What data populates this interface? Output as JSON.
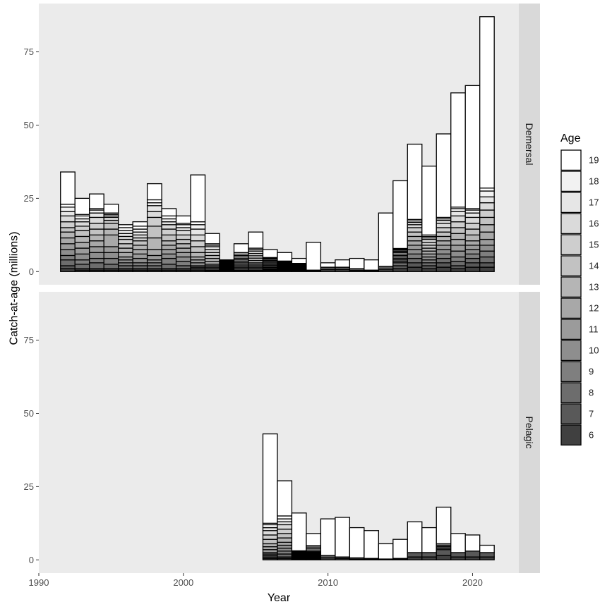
{
  "chart_data": {
    "type": "bar",
    "stacked": true,
    "xlabel": "Year",
    "ylabel": "Catch-at-age (millions)",
    "x_ticks": [
      1990,
      2000,
      2010,
      2020
    ],
    "y_ticks": [
      0,
      25,
      50,
      75
    ],
    "xlim": [
      1990,
      2023.2
    ],
    "ylim": [
      -4.5,
      91.5
    ],
    "grid": false,
    "legend": {
      "title": "Age",
      "position": "right",
      "entries": [
        "19",
        "18",
        "17",
        "16",
        "15",
        "14",
        "13",
        "12",
        "11",
        "10",
        "9",
        "8",
        "7",
        "6"
      ],
      "colors": [
        "#ffffff",
        "#f2f2f2",
        "#e6e6e6",
        "#dadada",
        "#cecece",
        "#c2c2c2",
        "#b5b5b5",
        "#a8a8a8",
        "#9b9b9b",
        "#8e8e8e",
        "#7f7f7f",
        "#6d6d6d",
        "#595959",
        "#404040"
      ]
    },
    "facets": [
      {
        "name": "Demersal",
        "bars": [
          {
            "x": 1992,
            "total": 34,
            "layers": [
              1,
              1.5,
              1.5,
              2,
              2,
              1.5,
              2,
              2,
              2,
              2,
              1.5,
              2,
              1,
              1
            ]
          },
          {
            "x": 1993,
            "total": 25,
            "layers": [
              0.5,
              1,
              1,
              1.5,
              1.5,
              2,
              2,
              2,
              2,
              2,
              1.5,
              1.5,
              0.5,
              0.5
            ]
          },
          {
            "x": 1994,
            "total": 26.5,
            "layers": [
              0.5,
              1,
              1.5,
              2,
              2,
              2,
              2,
              2,
              2,
              2,
              1.5,
              2,
              0.5,
              0.5
            ]
          },
          {
            "x": 1995,
            "total": 23,
            "layers": [
              0.5,
              0.5,
              0.5,
              1,
              1,
              2,
              2,
              4,
              2,
              2,
              2,
              1.5,
              0.5,
              0.5
            ]
          },
          {
            "x": 1996,
            "total": 16,
            "layers": [
              1,
              1,
              1,
              1,
              1.5,
              1.5,
              1.5,
              1.5,
              1,
              1,
              1,
              1,
              0.5,
              0.5
            ]
          },
          {
            "x": 1997,
            "total": 17,
            "layers": [
              1,
              1,
              1,
              1,
              1,
              1.5,
              1.5,
              1.5,
              1.5,
              1.5,
              1,
              1,
              0.5,
              0.5
            ]
          },
          {
            "x": 1998,
            "total": 30,
            "layers": [
              1,
              1,
              2,
              2,
              3,
              4,
              4,
              2,
              1.5,
              1,
              1,
              1,
              0.5,
              0.5
            ]
          },
          {
            "x": 1999,
            "total": 21.5,
            "layers": [
              1,
              1,
              1,
              1.5,
              2,
              2,
              1.5,
              1.5,
              1.5,
              1.5,
              2,
              1.5,
              0.5,
              0.5
            ]
          },
          {
            "x": 2000,
            "total": 19,
            "layers": [
              0.5,
              1,
              1,
              1.5,
              1.5,
              1.5,
              1.5,
              1.5,
              1.5,
              1.5,
              1.5,
              1,
              0.5,
              0.5
            ]
          },
          {
            "x": 2001,
            "total": 33,
            "layers": [
              1,
              1.5,
              2,
              2,
              2,
              2,
              1.5,
              1,
              1,
              1,
              0.5,
              0.5,
              0.5,
              0.5
            ]
          },
          {
            "x": 2002,
            "total": 13,
            "layers": [
              0.5,
              0.5,
              1,
              1,
              1,
              1,
              1,
              1,
              0.5,
              0.5,
              0.5,
              0.5,
              0.3,
              0.2
            ]
          },
          {
            "x": 2003,
            "total": 4,
            "layers": [
              0.2,
              0.2,
              0.3,
              0.3,
              0.3,
              0.3,
              0.3,
              0.3,
              0.3,
              0.3,
              0.3,
              0.3,
              0.3,
              0.3
            ]
          },
          {
            "x": 2004,
            "total": 9.5,
            "layers": [
              0.5,
              0.5,
              0.5,
              0.5,
              0.5,
              0.5,
              0.5,
              0.5,
              0.5,
              0.5,
              0.5,
              0.5,
              0.3,
              0.2
            ]
          },
          {
            "x": 2005,
            "total": 13.5,
            "layers": [
              0.5,
              0.5,
              0.8,
              0.8,
              0.8,
              0.8,
              0.8,
              0.5,
              0.5,
              0.5,
              0.5,
              0.5,
              0.3,
              0.2
            ]
          },
          {
            "x": 2006,
            "total": 7.5,
            "layers": [
              0.3,
              0.3,
              0.4,
              0.4,
              0.4,
              0.4,
              0.4,
              0.4,
              0.4,
              0.4,
              0.3,
              0.3,
              0.2,
              0.2
            ]
          },
          {
            "x": 2007,
            "total": 6.5,
            "layers": [
              0.2,
              0.2,
              0.3,
              0.3,
              0.3,
              0.3,
              0.3,
              0.3,
              0.3,
              0.3,
              0.2,
              0.2,
              0.2,
              0.2
            ]
          },
          {
            "x": 2008,
            "total": 4.5,
            "layers": [
              0.2,
              0.2,
              0.2,
              0.2,
              0.2,
              0.2,
              0.2,
              0.2,
              0.2,
              0.2,
              0.2,
              0.2,
              0.2,
              0.2
            ]
          },
          {
            "x": 2009,
            "total": 10,
            "layers": [
              0,
              0,
              0,
              0,
              0,
              0,
              0,
              0,
              0,
              0,
              0,
              0,
              0.3,
              0.2
            ]
          },
          {
            "x": 2010,
            "total": 3,
            "layers": [
              0,
              0,
              0,
              0,
              0,
              0,
              0,
              0,
              0,
              0,
              0,
              0,
              0.8,
              0.7
            ]
          },
          {
            "x": 2011,
            "total": 4,
            "layers": [
              0,
              0,
              0,
              0,
              0,
              0,
              0,
              0,
              0,
              0,
              0,
              0,
              0.8,
              0.7
            ]
          },
          {
            "x": 2012,
            "total": 4.5,
            "layers": [
              0,
              0,
              0,
              0,
              0,
              0,
              0,
              0,
              0,
              0,
              0,
              0,
              0.6,
              0.4
            ]
          },
          {
            "x": 2013,
            "total": 4,
            "layers": [
              0,
              0,
              0,
              0,
              0,
              0,
              0,
              0,
              0,
              0,
              0,
              0,
              0.3,
              0.2
            ]
          },
          {
            "x": 2014,
            "total": 20,
            "layers": [
              0,
              0,
              0,
              0,
              0,
              0,
              0,
              0,
              0,
              0,
              0,
              0,
              1,
              0.8
            ]
          },
          {
            "x": 2015,
            "total": 31,
            "layers": [
              0.3,
              0.3,
              0.4,
              0.4,
              0.5,
              0.5,
              0.5,
              0.5,
              0.5,
              0.5,
              0.5,
              1,
              1,
              1
            ]
          },
          {
            "x": 2016,
            "total": 43.5,
            "layers": [
              0.5,
              0.5,
              0.8,
              1,
              1.5,
              1.5,
              1.5,
              1.5,
              1.5,
              1.5,
              1.5,
              1.5,
              1.5,
              1.5
            ]
          },
          {
            "x": 2017,
            "total": 36,
            "layers": [
              0.5,
              0.5,
              0.5,
              1,
              1,
              1,
              1,
              1,
              1,
              1,
              1,
              1,
              1,
              1
            ]
          },
          {
            "x": 2018,
            "total": 47,
            "layers": [
              0.5,
              0.5,
              1,
              1.5,
              1.5,
              1.5,
              1.5,
              1.5,
              1.5,
              1.5,
              1.5,
              1.5,
              1.5,
              1.5
            ]
          },
          {
            "x": 2019,
            "total": 61,
            "layers": [
              0.5,
              1,
              1.5,
              2,
              2,
              2,
              2,
              2,
              2,
              2,
              1.5,
              1.5,
              1,
              1
            ]
          },
          {
            "x": 2020,
            "total": 63.5,
            "layers": [
              0.5,
              1,
              1.5,
              2,
              2,
              2,
              2,
              1.5,
              1.5,
              1.5,
              1.5,
              1.5,
              1.5,
              1.5
            ]
          },
          {
            "x": 2021,
            "total": 87,
            "layers": [
              1,
              2,
              2,
              2.5,
              2.5,
              2.5,
              2.5,
              2.5,
              2,
              2,
              2,
              2,
              1.5,
              1.5
            ]
          }
        ]
      },
      {
        "name": "Pelagic",
        "bars": [
          {
            "x": 2006,
            "total": 43,
            "layers": [
              0.5,
              1,
              1,
              1.5,
              1.5,
              1.5,
              1,
              1,
              1,
              0.5,
              0.5,
              0.5,
              0.5,
              0.5
            ]
          },
          {
            "x": 2007,
            "total": 27,
            "layers": [
              1,
              1,
              1,
              1.5,
              1.5,
              1.5,
              1.5,
              1,
              1,
              1,
              1,
              1,
              0.5,
              0.5
            ]
          },
          {
            "x": 2008,
            "total": 16,
            "layers": [
              0.2,
              0.2,
              0.2,
              0.2,
              0.2,
              0.2,
              0.2,
              0.2,
              0.2,
              0.2,
              0.3,
              0.3,
              0.3,
              0.2
            ]
          },
          {
            "x": 2009,
            "total": 9,
            "layers": [
              0.5,
              0.5,
              0.5,
              0.5,
              0.3,
              0.3,
              0.3,
              0.3,
              0.3,
              0.3,
              0.3,
              0.3,
              0.3,
              0.2
            ]
          },
          {
            "x": 2010,
            "total": 14,
            "layers": [
              0,
              0,
              0,
              0,
              0,
              0,
              0,
              0,
              0,
              0,
              0,
              0,
              0.8,
              0.7
            ]
          },
          {
            "x": 2011,
            "total": 14.5,
            "layers": [
              0,
              0,
              0,
              0,
              0,
              0,
              0,
              0,
              0,
              0,
              0,
              0,
              0.5,
              0.5
            ]
          },
          {
            "x": 2012,
            "total": 11,
            "layers": [
              0,
              0,
              0,
              0,
              0,
              0,
              0,
              0,
              0,
              0,
              0,
              0,
              0.4,
              0.3
            ]
          },
          {
            "x": 2013,
            "total": 10,
            "layers": [
              0,
              0,
              0,
              0,
              0,
              0,
              0,
              0,
              0,
              0,
              0,
              0,
              0.3,
              0.2
            ]
          },
          {
            "x": 2014,
            "total": 5.5,
            "layers": [
              0,
              0,
              0,
              0,
              0,
              0,
              0,
              0,
              0,
              0,
              0,
              0,
              0.2,
              0.1
            ]
          },
          {
            "x": 2015,
            "total": 7,
            "layers": [
              0,
              0,
              0,
              0,
              0,
              0,
              0,
              0,
              0,
              0,
              0,
              0,
              0.3,
              0.2
            ]
          },
          {
            "x": 2016,
            "total": 13,
            "layers": [
              0,
              0,
              0,
              0,
              0,
              0,
              0,
              0,
              0,
              0,
              0,
              0,
              1.5,
              1
            ]
          },
          {
            "x": 2017,
            "total": 11,
            "layers": [
              0,
              0,
              0,
              0,
              0,
              0,
              0,
              0,
              0,
              0,
              0,
              0,
              1.5,
              1
            ]
          },
          {
            "x": 2018,
            "total": 18,
            "layers": [
              0,
              0,
              0,
              0,
              0,
              0,
              0,
              0,
              0.5,
              0.5,
              0.5,
              0.5,
              2,
              1.5
            ]
          },
          {
            "x": 2019,
            "total": 9,
            "layers": [
              0,
              0,
              0,
              0,
              0,
              0,
              0,
              0,
              0,
              0,
              0,
              0,
              1.5,
              1
            ]
          },
          {
            "x": 2020,
            "total": 8.5,
            "layers": [
              0,
              0,
              0,
              0,
              0,
              0,
              0,
              0,
              0,
              0,
              0,
              0,
              2,
              1
            ]
          },
          {
            "x": 2021,
            "total": 5,
            "layers": [
              0,
              0,
              0,
              0,
              0,
              0,
              0,
              0,
              0,
              0,
              0,
              0,
              1.5,
              1
            ]
          }
        ]
      }
    ]
  }
}
